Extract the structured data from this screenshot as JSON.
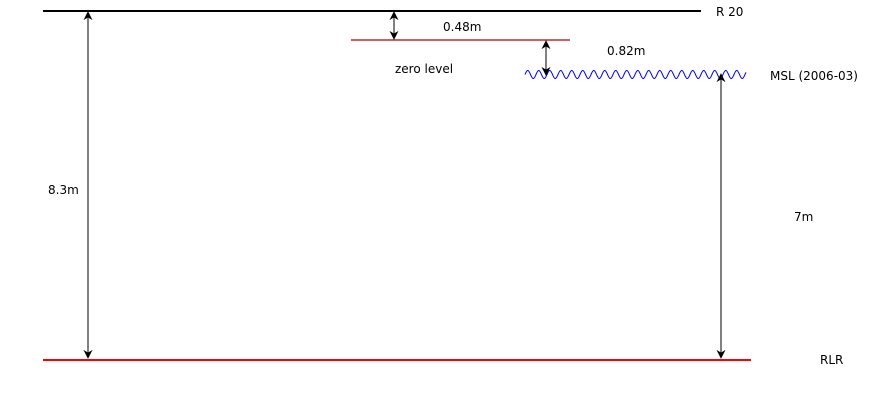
{
  "labels": {
    "r20": "R 20",
    "offset_r20_zero": "0.48m",
    "zero_level": "zero level",
    "offset_zero_msl": "0.82m",
    "msl": "MSL (2006-03)",
    "height_r20_rlr": "8.3m",
    "height_msl_rlr": "7m",
    "rlr": "RLR"
  },
  "colors": {
    "r20_line": "#000000",
    "zero_level_line": "#aa0000",
    "msl_wave": "#0000ff",
    "rlr_line": "#ff0000",
    "arrows": "#000000"
  }
}
